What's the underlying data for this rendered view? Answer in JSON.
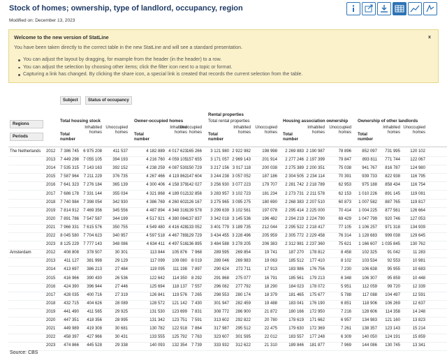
{
  "header": {
    "title": "Stock of homes; ownership, type of landlord, occupancy, region",
    "modified": "Modified on: December 13, 2023"
  },
  "notice": {
    "title": "Welcome to the new version of StatLine",
    "close": "x",
    "text": "You have been taken directly to the correct table in the new StatLine and will see a standard presentation.",
    "bullets": [
      "You can adjust the layout by dragging, for example from the header (in the header) to a row.",
      "You can adjust the selection by choosing other items; click the filter icon next to a topic or format.",
      "Capturing a link has changed. By clicking the share icon, a special link is created that records the current selection from the table."
    ]
  },
  "table": {
    "filters": [
      "Subject",
      "Status of occupancy"
    ],
    "row_filters": [
      "Regions",
      "Periods"
    ],
    "supergroup": "Rental properties",
    "groups": [
      "Total housing stock",
      "Owner-occupied homes",
      "Total rental properties",
      "Housing association ownership",
      "Ownership of other landlords"
    ],
    "columns": [
      "Total number",
      "Inhabited homes",
      "Unoccupied homes"
    ],
    "rows": [
      {
        "region": "The Netherlands",
        "period": "2012",
        "cells": [
          "7 386 745",
          "6 975 208",
          "411 537",
          "4 182 889",
          "4 017 623",
          "165 266",
          "3 121 980",
          "2 922 982",
          "198 998",
          "2 269 883",
          "2 190 987",
          "78 896",
          "852 097",
          "731 995",
          "120 102"
        ]
      },
      {
        "period": "2013",
        "cells": [
          "7 449 298",
          "7 055 105",
          "394 193",
          "4 216 760",
          "4 059 105",
          "157 655",
          "3 171 057",
          "2 969 143",
          "201 914",
          "2 277 246",
          "2 197 399",
          "79 847",
          "893 811",
          "771 744",
          "122 067"
        ]
      },
      {
        "period": "2014",
        "cells": [
          "7 535 315",
          "7 143 163",
          "392 152",
          "4 238 259",
          "4 087 530",
          "150 729",
          "3 217 156",
          "3 017 118",
          "200 038",
          "2 275 389",
          "2 200 351",
          "75 038",
          "941 767",
          "816 787",
          "124 980"
        ]
      },
      {
        "period": "2015",
        "cells": [
          "7 587 964",
          "7 211 229",
          "376 735",
          "4 267 466",
          "4 119 862",
          "147 604",
          "3 244 238",
          "3 057 052",
          "187 186",
          "2 304 505",
          "2 234 114",
          "70 391",
          "939 733",
          "822 938",
          "116 795"
        ]
      },
      {
        "period": "2016",
        "cells": [
          "7 641 323",
          "7 276 184",
          "365 139",
          "4 300 406",
          "4 158 379",
          "142 027",
          "3 256 930",
          "3 077 223",
          "179 707",
          "2 281 742",
          "2 218 789",
          "62 953",
          "975 188",
          "858 434",
          "116 754"
        ]
      },
      {
        "period": "2017",
        "cells": [
          "7 686 178",
          "7 331 144",
          "355 034",
          "4 321 868",
          "4 189 012",
          "132 856",
          "3 283 957",
          "3 102 723",
          "181 234",
          "2 273 731",
          "2 211 578",
          "62 153",
          "1 010 226",
          "891 145",
          "119 081"
        ]
      },
      {
        "period": "2018",
        "cells": [
          "7 740 984",
          "7 398 054",
          "342 930",
          "4 386 769",
          "4 260 602",
          "126 167",
          "3 275 965",
          "3 095 275",
          "180 690",
          "2 268 383",
          "2 207 510",
          "60 873",
          "1 007 582",
          "887 765",
          "119 817"
        ]
      },
      {
        "period": "2019",
        "cells": [
          "7 814 912",
          "7 469 356",
          "345 556",
          "4 487 894",
          "4 348 316",
          "139 578",
          "3 299 639",
          "3 102 561",
          "197 078",
          "2 295 414",
          "2 225 000",
          "70 414",
          "1 004 225",
          "877 561",
          "126 664"
        ]
      },
      {
        "period": "2020",
        "cells": [
          "7 891 786",
          "7 547 587",
          "344 199",
          "4 517 921",
          "4 380 084",
          "137 837",
          "3 342 018",
          "3 145 536",
          "196 482",
          "2 294 219",
          "2 224 790",
          "69 429",
          "1 047 799",
          "920 746",
          "127 053"
        ]
      },
      {
        "period": "2021",
        "cells": [
          "7 966 331",
          "7 615 576",
          "350 755",
          "4 549 480",
          "4 416 428",
          "133 052",
          "3 401 779",
          "3 189 735",
          "212 044",
          "2 295 522",
          "2 218 417",
          "77 105",
          "1 106 257",
          "971 318",
          "134 939"
        ]
      },
      {
        "period": "2022",
        "cells": [
          "8 045 580",
          "7 704 623",
          "340 957",
          "4 597 518",
          "4 467 789",
          "129 729",
          "3 434 455",
          "3 228 496",
          "205 959",
          "2 305 772",
          "2 229 458",
          "76 314",
          "1 128 683",
          "999 038",
          "129 645"
        ]
      },
      {
        "period": "2023",
        "cells": [
          "8 125 229",
          "7 777 143",
          "348 086",
          "4 634 411",
          "4 497 516",
          "136 895",
          "3 484 588",
          "3 278 205",
          "206 383",
          "2 312 981",
          "2 237 360",
          "75 621",
          "1 166 607",
          "1 035 845",
          "130 762"
        ]
      },
      {
        "region": "Amsterdam",
        "period": "2012",
        "cells": [
          "408 808",
          "378 507",
          "30 301",
          "113 844",
          "105 876",
          "7 968",
          "289 595",
          "269 854",
          "19 741",
          "187 270",
          "178 812",
          "8 458",
          "102 325",
          "91 042",
          "11 283"
        ]
      },
      {
        "period": "2013",
        "cells": [
          "411 127",
          "381 998",
          "29 129",
          "117 099",
          "109 080",
          "8 019",
          "289 046",
          "269 983",
          "19 063",
          "185 512",
          "177 410",
          "8 102",
          "103 534",
          "92 553",
          "10 981"
        ]
      },
      {
        "period": "2014",
        "cells": [
          "413 697",
          "386 213",
          "27 484",
          "119 095",
          "111 198",
          "7 897",
          "290 624",
          "272 711",
          "17 913",
          "183 986",
          "176 756",
          "7 230",
          "106 638",
          "95 955",
          "10 683"
        ]
      },
      {
        "period": "2015",
        "cells": [
          "416 966",
          "390 430",
          "26 536",
          "122 642",
          "114 350",
          "8 292",
          "291 868",
          "275 077",
          "16 791",
          "185 561",
          "179 213",
          "6 348",
          "106 307",
          "95 859",
          "10 448"
        ]
      },
      {
        "period": "2016",
        "cells": [
          "424 390",
          "396 944",
          "27 446",
          "125 694",
          "118 137",
          "7 557",
          "296 082",
          "277 792",
          "18 290",
          "184 023",
          "178 072",
          "5 951",
          "112 059",
          "99 720",
          "12 339"
        ]
      },
      {
        "period": "2017",
        "cells": [
          "428 035",
          "400 716",
          "27 319",
          "126 841",
          "119 576",
          "7 265",
          "298 553",
          "280 174",
          "18 379",
          "181 465",
          "175 677",
          "5 788",
          "117 088",
          "104 497",
          "12 591"
        ]
      },
      {
        "period": "2018",
        "cells": [
          "432 715",
          "404 626",
          "28 089",
          "128 572",
          "121 142",
          "7 430",
          "301 947",
          "282 459",
          "19 488",
          "183 041",
          "176 190",
          "6 851",
          "118 906",
          "106 269",
          "12 637"
        ]
      },
      {
        "period": "2019",
        "cells": [
          "441 490",
          "411 565",
          "29 925",
          "131 530",
          "123 699",
          "7 831",
          "308 772",
          "286 900",
          "21 872",
          "180 166",
          "172 950",
          "7 216",
          "128 606",
          "114 358",
          "14 248"
        ]
      },
      {
        "period": "2020",
        "cells": [
          "447 351",
          "418 356",
          "28 995",
          "131 342",
          "123 751",
          "7 591",
          "313 602",
          "292 822",
          "20 780",
          "178 619",
          "171 662",
          "6 957",
          "134 983",
          "121 160",
          "13 823"
        ]
      },
      {
        "period": "2021",
        "cells": [
          "449 989",
          "419 308",
          "30 681",
          "130 782",
          "122 918",
          "7 864",
          "317 987",
          "295 512",
          "22 475",
          "179 630",
          "172 369",
          "7 261",
          "138 357",
          "123 143",
          "15 214"
        ]
      },
      {
        "period": "2022",
        "cells": [
          "458 397",
          "427 966",
          "30 431",
          "133 555",
          "125 792",
          "7 763",
          "323 607",
          "301 595",
          "22 012",
          "183 557",
          "177 248",
          "6 309",
          "140 050",
          "124 191",
          "15 859"
        ]
      },
      {
        "period": "2023",
        "cells": [
          "474 866",
          "445 528",
          "29 338",
          "140 093",
          "132 354",
          "7 739",
          "333 932",
          "312 622",
          "21 310",
          "189 846",
          "181 877",
          "7 969",
          "144 086",
          "130 745",
          "13 341"
        ]
      }
    ]
  },
  "footer": {
    "source": "Source: CBS"
  }
}
